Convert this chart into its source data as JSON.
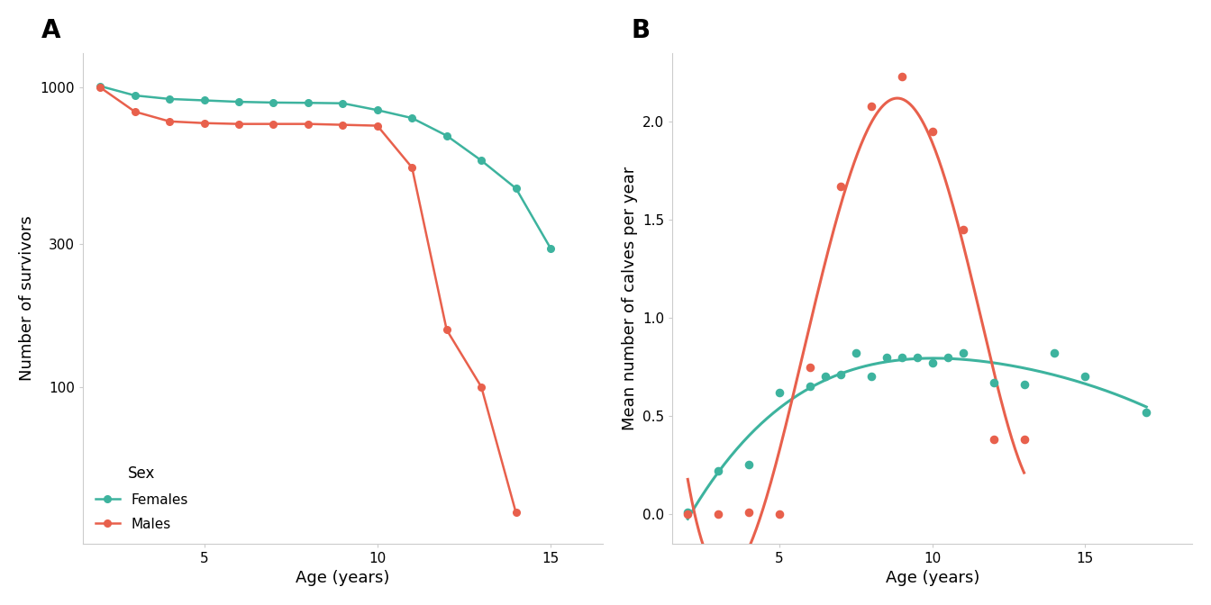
{
  "panel_A": {
    "title": "A",
    "xlabel": "Age (years)",
    "ylabel": "Number of survivors",
    "female_age": [
      2,
      3,
      4,
      5,
      6,
      7,
      8,
      9,
      10,
      11,
      12,
      13,
      14,
      15
    ],
    "female_surv": [
      1010,
      940,
      915,
      905,
      895,
      890,
      888,
      885,
      840,
      790,
      690,
      570,
      460,
      290
    ],
    "male_age": [
      2,
      3,
      4,
      5,
      6,
      7,
      8,
      9,
      10,
      11,
      12,
      13,
      14
    ],
    "male_surv": [
      1000,
      830,
      770,
      760,
      755,
      755,
      755,
      750,
      745,
      540,
      155,
      100,
      38
    ],
    "female_color": "#3db39e",
    "male_color": "#e8604c",
    "yticks": [
      100,
      300,
      1000
    ],
    "xticks": [
      5,
      10,
      15
    ],
    "ylim_log": [
      30,
      1300
    ],
    "xlim": [
      1.5,
      16.5
    ]
  },
  "panel_B": {
    "title": "B",
    "xlabel": "Age (years)",
    "ylabel": "Mean number of calves per year",
    "female_age_pts": [
      2,
      3,
      4,
      5,
      6,
      6.5,
      7,
      7.5,
      8,
      8.5,
      9,
      9.5,
      10,
      10.5,
      11,
      12,
      13,
      14,
      15,
      17
    ],
    "female_repro_pts": [
      0.01,
      0.22,
      0.25,
      0.62,
      0.65,
      0.7,
      0.71,
      0.82,
      0.7,
      0.8,
      0.8,
      0.8,
      0.77,
      0.8,
      0.82,
      0.67,
      0.66,
      0.82,
      0.7,
      0.52
    ],
    "male_age_pts": [
      2,
      3,
      4,
      5,
      6,
      7,
      8,
      9,
      10,
      11,
      12,
      13
    ],
    "male_repro_pts": [
      0.0,
      0.0,
      0.01,
      0.0,
      0.75,
      1.67,
      2.08,
      2.23,
      1.95,
      1.45,
      0.38,
      0.38
    ],
    "female_color": "#3db39e",
    "male_color": "#e8604c",
    "ylim": [
      -0.15,
      2.35
    ],
    "xlim": [
      1.5,
      18.5
    ],
    "xticks": [
      5,
      10,
      15
    ],
    "yticks": [
      0.0,
      0.5,
      1.0,
      1.5,
      2.0
    ]
  },
  "background_color": "#ffffff",
  "legend_title": "Sex",
  "legend_females": "Females",
  "legend_males": "Males"
}
